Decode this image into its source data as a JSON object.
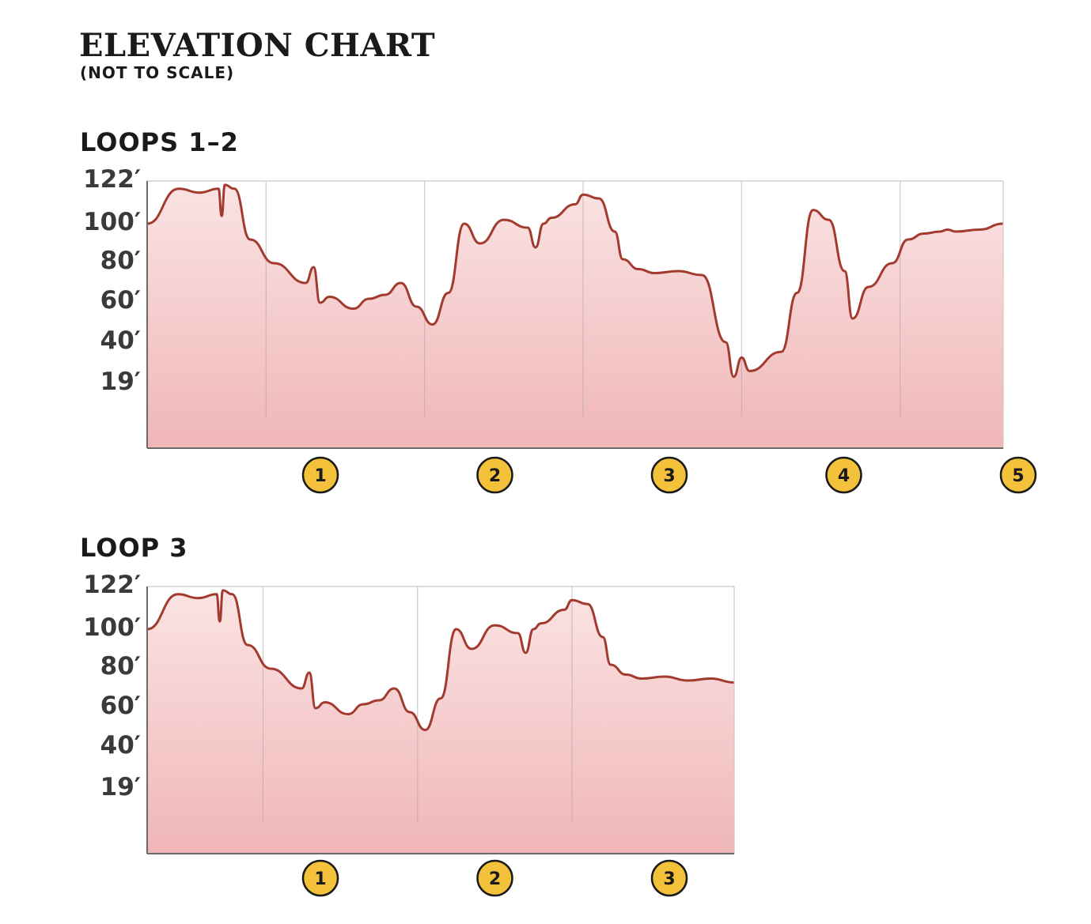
{
  "title": "ELEVATION CHART",
  "subtitle": "(NOT TO SCALE)",
  "colors": {
    "line": "#a23a2e",
    "fill_top": "#fbe3e3",
    "fill_bottom": "#f0b6b8",
    "marker": "#f3c13a",
    "marker_border": "#1a1a1a",
    "divider": "#b0a8a8"
  },
  "chart_data": [
    {
      "type": "area",
      "title": "LOOPS 1–2",
      "y_tick_labels": [
        "122′",
        "100′",
        "80′",
        "60′",
        "40′",
        "19′"
      ],
      "y_tick_values": [
        122,
        100,
        80,
        60,
        40,
        19
      ],
      "markers": [
        "1",
        "2",
        "3",
        "4",
        "5"
      ],
      "x_range": [
        0,
        5.4
      ],
      "grid": false,
      "x": [
        0.0,
        0.2,
        0.33,
        0.45,
        0.47,
        0.49,
        0.55,
        0.65,
        0.8,
        1.0,
        1.05,
        1.09,
        1.15,
        1.3,
        1.4,
        1.5,
        1.6,
        1.7,
        1.8,
        1.9,
        2.0,
        2.1,
        2.25,
        2.4,
        2.45,
        2.5,
        2.55,
        2.7,
        2.75,
        2.85,
        2.95,
        3.0,
        3.1,
        3.2,
        3.35,
        3.5,
        3.65,
        3.7,
        3.75,
        3.8,
        4.0,
        4.1,
        4.2,
        4.3,
        4.4,
        4.45,
        4.55,
        4.7,
        4.8,
        4.9,
        5.0,
        5.05,
        5.1,
        5.25,
        5.4
      ],
      "y": [
        100,
        118,
        116,
        118,
        104,
        120,
        118,
        92,
        80,
        70,
        78,
        60,
        63,
        57,
        62,
        64,
        70,
        58,
        49,
        65,
        100,
        90,
        102,
        98,
        88,
        100,
        103,
        110,
        115,
        113,
        96,
        82,
        77,
        75,
        76,
        74,
        40,
        22,
        32,
        25,
        35,
        65,
        107,
        102,
        76,
        52,
        68,
        80,
        92,
        95,
        96,
        97,
        96,
        97,
        100
      ]
    },
    {
      "type": "area",
      "title": "LOOP 3",
      "y_tick_labels": [
        "122′",
        "100′",
        "80′",
        "60′",
        "40′",
        "19′"
      ],
      "y_tick_values": [
        122,
        100,
        80,
        60,
        40,
        19
      ],
      "markers": [
        "1",
        "2",
        "3"
      ],
      "x_range": [
        0,
        3.8
      ],
      "grid": false,
      "x": [
        0.0,
        0.2,
        0.33,
        0.45,
        0.47,
        0.49,
        0.55,
        0.65,
        0.8,
        1.0,
        1.05,
        1.09,
        1.15,
        1.3,
        1.4,
        1.5,
        1.6,
        1.7,
        1.8,
        1.9,
        2.0,
        2.1,
        2.25,
        2.4,
        2.45,
        2.5,
        2.55,
        2.7,
        2.75,
        2.85,
        2.95,
        3.0,
        3.1,
        3.2,
        3.35,
        3.5,
        3.65,
        3.8
      ],
      "y": [
        100,
        118,
        116,
        118,
        104,
        120,
        118,
        92,
        80,
        70,
        78,
        60,
        63,
        57,
        62,
        64,
        70,
        58,
        49,
        65,
        100,
        90,
        102,
        98,
        88,
        100,
        103,
        110,
        115,
        113,
        96,
        82,
        77,
        75,
        76,
        74,
        75,
        73
      ]
    }
  ]
}
